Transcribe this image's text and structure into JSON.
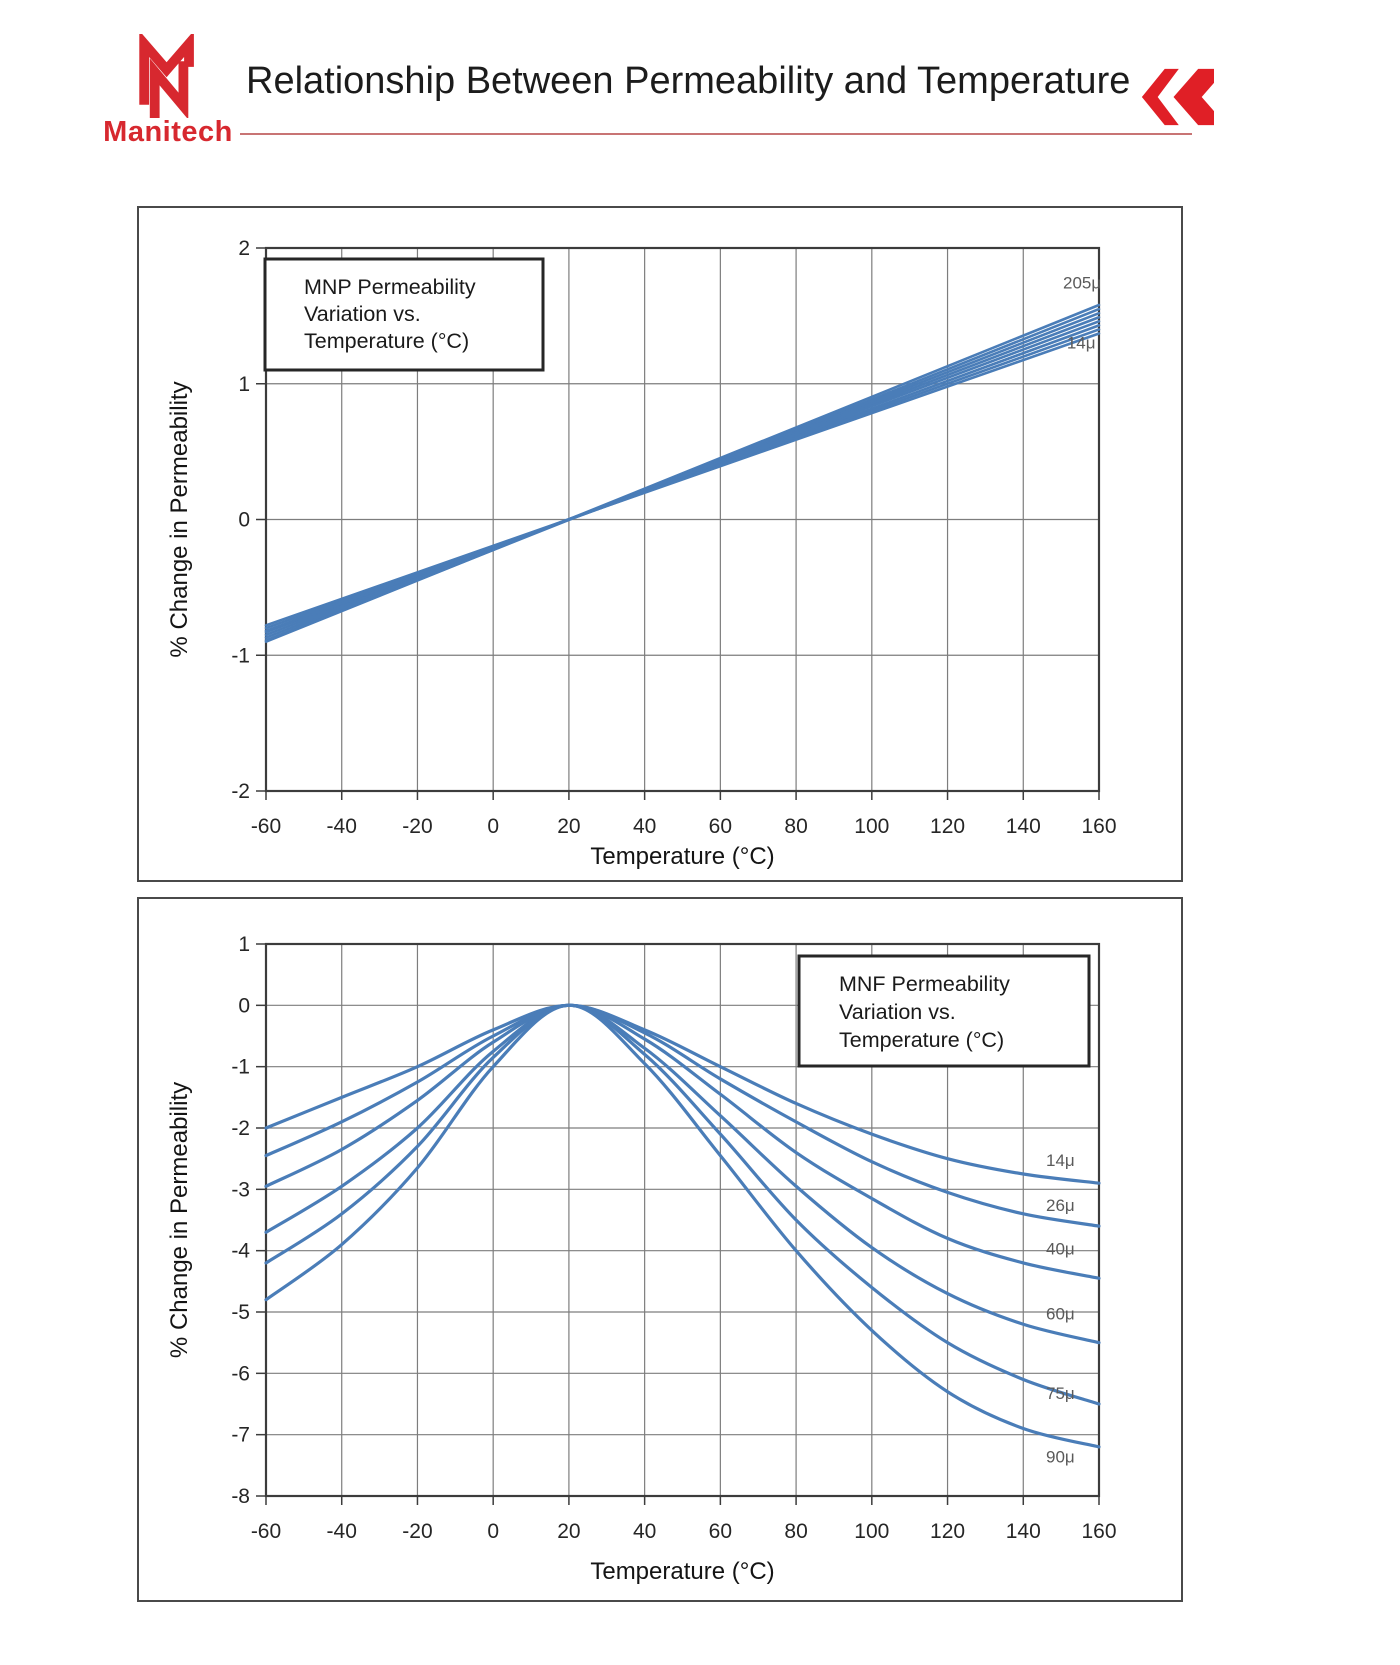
{
  "header": {
    "logo": {
      "name": "Manitech",
      "color": "#d7282f"
    },
    "title": "Relationship Between Permeability and Temperature",
    "rule_color": "#c87474",
    "chevron_color": "#e01f26"
  },
  "chart_data": [
    {
      "type": "line",
      "legend_box": {
        "lines": [
          "MNP Permeability",
          "Variation vs.",
          "Temperature (°C)"
        ]
      },
      "xlabel": "Temperature (°C)",
      "ylabel": "% Change in Permeability",
      "xlim": [
        -60,
        160
      ],
      "ylim": [
        -2,
        2
      ],
      "xticks": [
        -60,
        -40,
        -20,
        0,
        20,
        40,
        60,
        80,
        100,
        120,
        140,
        160
      ],
      "yticks": [
        2,
        1,
        0,
        -1,
        -2
      ],
      "grid": true,
      "legend_position": "top-left",
      "line_color": "#4a7db8",
      "x": [
        -60,
        160
      ],
      "series": [
        {
          "name": "205μ",
          "values": [
            -0.9,
            1.58
          ]
        },
        {
          "name": "",
          "values": [
            -0.89,
            1.55
          ]
        },
        {
          "name": "",
          "values": [
            -0.87,
            1.52
          ]
        },
        {
          "name": "",
          "values": [
            -0.85,
            1.49
          ]
        },
        {
          "name": "",
          "values": [
            -0.83,
            1.46
          ]
        },
        {
          "name": "",
          "values": [
            -0.82,
            1.43
          ]
        },
        {
          "name": "",
          "values": [
            -0.8,
            1.4
          ]
        },
        {
          "name": "14μ",
          "values": [
            -0.78,
            1.37
          ]
        }
      ],
      "annotations": [
        {
          "text": "205μ",
          "x": 150.5,
          "y": 1.7
        },
        {
          "text": "14μ",
          "x": 151.5,
          "y": 1.26
        }
      ]
    },
    {
      "type": "line",
      "legend_box": {
        "lines": [
          "MNF Permeability",
          "Variation vs.",
          "Temperature (°C)"
        ]
      },
      "xlabel": "Temperature (°C)",
      "ylabel": "% Change in Permeability",
      "xlim": [
        -60,
        160
      ],
      "ylim": [
        -8,
        1
      ],
      "xticks": [
        -60,
        -40,
        -20,
        0,
        20,
        40,
        60,
        80,
        100,
        120,
        140,
        160
      ],
      "yticks": [
        1,
        0,
        -1,
        -2,
        -3,
        -4,
        -5,
        -6,
        -7,
        -8
      ],
      "grid": true,
      "legend_position": "top-right",
      "line_color": "#4a7db8",
      "x": [
        -60,
        -40,
        -20,
        0,
        20,
        40,
        60,
        80,
        100,
        120,
        140,
        160
      ],
      "series": [
        {
          "name": "14μ",
          "values": [
            -2.0,
            -1.5,
            -1.0,
            -0.4,
            0,
            -0.4,
            -1.0,
            -1.6,
            -2.1,
            -2.5,
            -2.75,
            -2.9
          ]
        },
        {
          "name": "26μ",
          "values": [
            -2.45,
            -1.9,
            -1.25,
            -0.5,
            0,
            -0.45,
            -1.2,
            -1.9,
            -2.55,
            -3.05,
            -3.4,
            -3.6
          ]
        },
        {
          "name": "40μ",
          "values": [
            -2.95,
            -2.35,
            -1.55,
            -0.6,
            0,
            -0.55,
            -1.45,
            -2.4,
            -3.15,
            -3.8,
            -4.2,
            -4.45
          ]
        },
        {
          "name": "60μ",
          "values": [
            -3.7,
            -2.95,
            -2.0,
            -0.75,
            0,
            -0.7,
            -1.8,
            -2.95,
            -3.95,
            -4.7,
            -5.2,
            -5.5
          ]
        },
        {
          "name": "75μ",
          "values": [
            -4.2,
            -3.4,
            -2.3,
            -0.85,
            0,
            -0.8,
            -2.1,
            -3.5,
            -4.6,
            -5.5,
            -6.1,
            -6.5
          ]
        },
        {
          "name": "90μ",
          "values": [
            -4.8,
            -3.9,
            -2.65,
            -1.0,
            0,
            -0.95,
            -2.45,
            -4.0,
            -5.3,
            -6.3,
            -6.9,
            -7.2
          ]
        }
      ],
      "annotations": [
        {
          "text": "14μ",
          "x": 146,
          "y": -2.62
        },
        {
          "text": "26μ",
          "x": 146,
          "y": -3.35
        },
        {
          "text": "40μ",
          "x": 146,
          "y": -4.06
        },
        {
          "text": "60μ",
          "x": 146,
          "y": -5.12
        },
        {
          "text": "75μ",
          "x": 146,
          "y": -6.42
        },
        {
          "text": "90μ",
          "x": 146,
          "y": -7.45
        }
      ]
    }
  ]
}
